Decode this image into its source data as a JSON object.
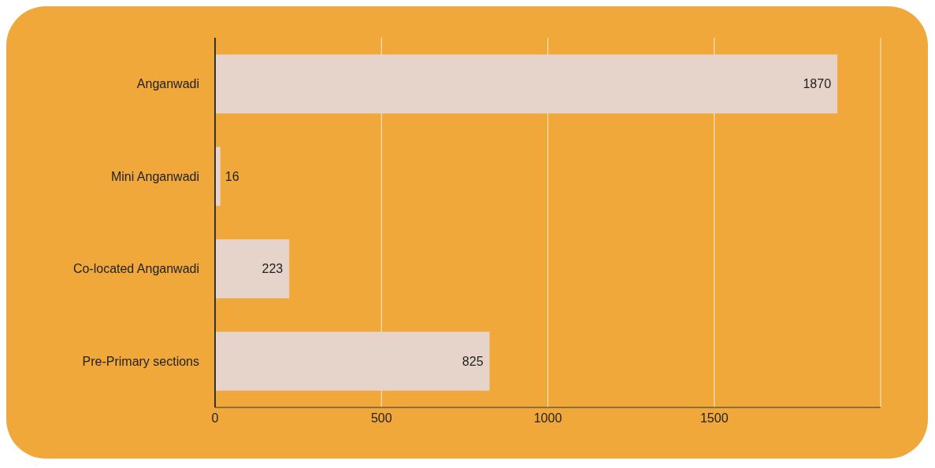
{
  "chart_data": {
    "type": "bar",
    "orientation": "horizontal",
    "categories": [
      "Anganwadi",
      "Mini Anganwadi",
      "Co-located Anganwadi",
      "Pre-Primary sections"
    ],
    "values": [
      1870,
      16,
      223,
      825
    ],
    "color": "#e6d3c9",
    "xlim": [
      0,
      2000
    ],
    "xticks": [
      0,
      500,
      1000,
      1500
    ],
    "grid": "x",
    "data_labels": true
  }
}
